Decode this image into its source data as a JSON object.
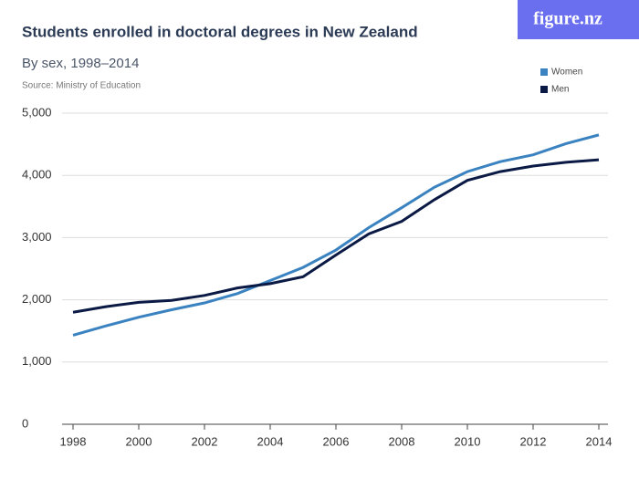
{
  "chart_data": {
    "type": "line",
    "title": "Students enrolled in doctoral degrees in New Zealand",
    "subtitle": "By sex, 1998–2014",
    "source": "Source: Ministry of Education",
    "logo": "figure.nz",
    "x": [
      1998,
      1999,
      2000,
      2001,
      2002,
      2003,
      2004,
      2005,
      2006,
      2007,
      2008,
      2009,
      2010,
      2011,
      2012,
      2013,
      2014
    ],
    "series": [
      {
        "name": "Women",
        "color": "#3a82c0",
        "values": [
          1430,
          1580,
          1720,
          1840,
          1950,
          2100,
          2310,
          2520,
          2800,
          3160,
          3480,
          3810,
          4060,
          4220,
          4330,
          4510,
          4650
        ]
      },
      {
        "name": "Men",
        "color": "#0b1a45",
        "values": [
          1800,
          1890,
          1960,
          1990,
          2070,
          2190,
          2260,
          2370,
          2720,
          3060,
          3260,
          3610,
          3920,
          4060,
          4150,
          4210,
          4250
        ]
      }
    ],
    "xlim": [
      1998,
      2014
    ],
    "xticks": [
      1998,
      2000,
      2002,
      2004,
      2006,
      2008,
      2010,
      2012,
      2014
    ],
    "ylim": [
      0,
      5000
    ],
    "yticks": [
      0,
      {
        "value": 1000,
        "label": "1,000"
      },
      {
        "value": 2000,
        "label": "2,000"
      },
      {
        "value": 3000,
        "label": "3,000"
      },
      {
        "value": 4000,
        "label": "4,000"
      },
      {
        "value": 5000,
        "label": "5,000"
      }
    ],
    "grid": true
  }
}
